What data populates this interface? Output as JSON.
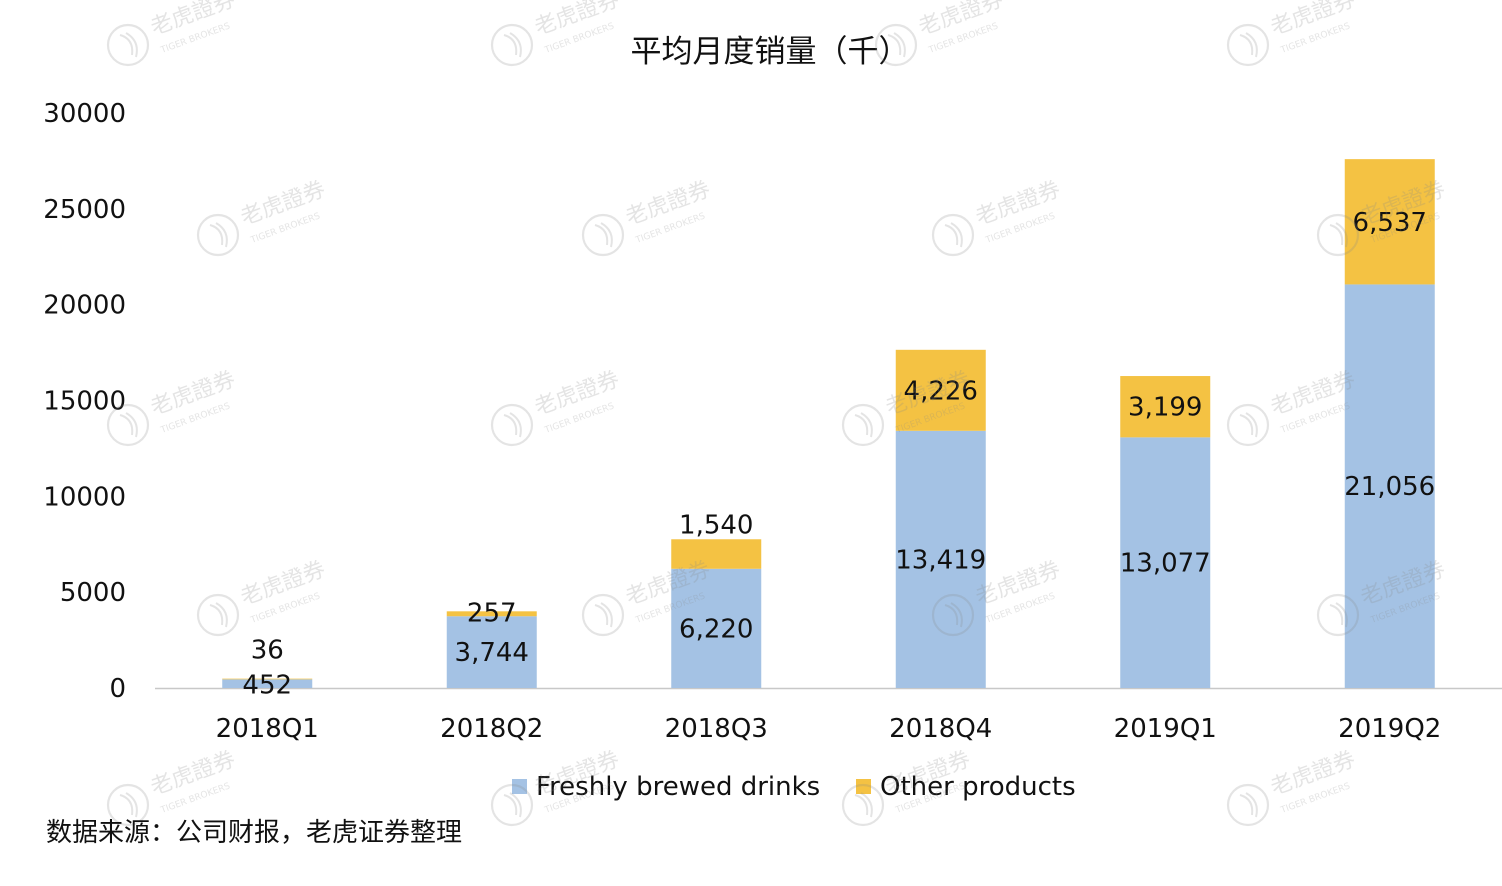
{
  "chart_data": {
    "type": "bar",
    "stacked": true,
    "title": "平均月度销量（千）",
    "categories": [
      "2018Q1",
      "2018Q2",
      "2018Q3",
      "2018Q4",
      "2019Q1",
      "2019Q2"
    ],
    "series": [
      {
        "name": "Freshly brewed drinks",
        "color": "#A4C2E4",
        "values": [
          452,
          3744,
          6220,
          13419,
          13077,
          21056
        ],
        "labels": [
          "452",
          "3,744",
          "6,220",
          "13,419",
          "13,077",
          "21,056"
        ]
      },
      {
        "name": "Other products",
        "color": "#F4C243",
        "values": [
          36,
          257,
          1540,
          4226,
          3199,
          6537
        ],
        "labels": [
          "36",
          "257",
          "1,540",
          "4,226",
          "3,199",
          "6,537"
        ]
      }
    ],
    "y_ticks": [
      0,
      5000,
      10000,
      15000,
      20000,
      25000,
      30000
    ],
    "ylim": [
      0,
      30000
    ],
    "grid": false,
    "legend_position": "bottom"
  },
  "source": "数据来源：公司财报，老虎证券整理",
  "watermark": {
    "text_cn": "老虎證券",
    "text_en": "TIGER BROKERS"
  }
}
